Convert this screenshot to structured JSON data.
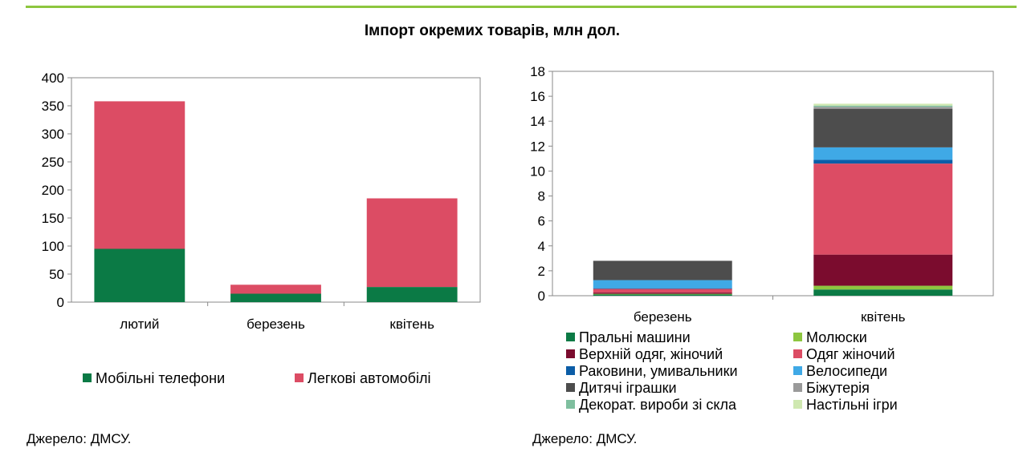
{
  "page_title": "Імпорт окремих товарів, млн дол.",
  "source_left": "Джерело: ДМСУ.",
  "source_right": "Джерело: ДМСУ.",
  "chart_data": [
    {
      "type": "bar",
      "stacked": true,
      "categories": [
        "лютий",
        "березень",
        "квітень"
      ],
      "ylim": [
        0,
        400
      ],
      "yticks": [
        0,
        50,
        100,
        150,
        200,
        250,
        300,
        350,
        400
      ],
      "grid": false,
      "legend_position": "bottom",
      "series": [
        {
          "name": "Мобільні телефони",
          "color": "#0b7a45",
          "values": [
            95,
            15,
            27
          ]
        },
        {
          "name": "Легкові автомобілі",
          "color": "#dc4c64",
          "values": [
            263,
            16,
            158
          ]
        }
      ]
    },
    {
      "type": "bar",
      "stacked": true,
      "categories": [
        "березень",
        "квітень"
      ],
      "ylim": [
        0,
        18
      ],
      "yticks": [
        0,
        2,
        4,
        6,
        8,
        10,
        12,
        14,
        16,
        18
      ],
      "grid": false,
      "legend_position": "bottom",
      "series": [
        {
          "name": "Пральні машини",
          "color": "#0b7a45",
          "values": [
            0.1,
            0.5
          ]
        },
        {
          "name": "Молюски",
          "color": "#8dc63f",
          "values": [
            0.05,
            0.3
          ]
        },
        {
          "name": "Верхній одяг, жіночий",
          "color": "#7b0c2e",
          "values": [
            0.1,
            2.5
          ]
        },
        {
          "name": "Одяг жіночий",
          "color": "#dc4c64",
          "values": [
            0.3,
            7.3
          ]
        },
        {
          "name": "Раковини, умивальники",
          "color": "#0b5da7",
          "values": [
            0.05,
            0.3
          ]
        },
        {
          "name": "Велосипеди",
          "color": "#3fa9e6",
          "values": [
            0.65,
            1.0
          ]
        },
        {
          "name": "Дитячі іграшки",
          "color": "#4d4d4d",
          "values": [
            1.55,
            3.1
          ]
        },
        {
          "name": "Біжутерія",
          "color": "#9a9a9a",
          "values": [
            0,
            0.15
          ]
        },
        {
          "name": "Декорат. вироби зі скла",
          "color": "#7fbf9f",
          "values": [
            0,
            0.1
          ]
        },
        {
          "name": "Настільні ігри",
          "color": "#cfe8b0",
          "values": [
            0,
            0.15
          ]
        }
      ]
    }
  ]
}
